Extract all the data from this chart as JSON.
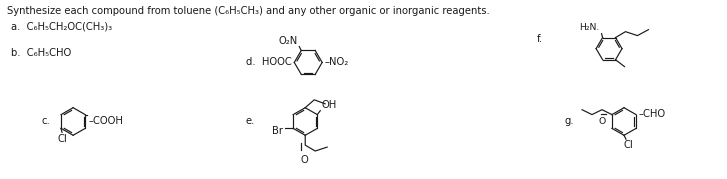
{
  "title": "Synthesize each compound from toluene (C₆H₅CH₃) and any other organic or inorganic reagents.",
  "bg_color": "#ffffff",
  "text_color": "#1a1a1a",
  "label_a": "a.  C₆H₅CH₂OC(CH₃)₃",
  "label_b": "b.  C₆H₅CHO",
  "label_c": "c.",
  "label_d": "d.",
  "label_e": "e.",
  "label_f": "f.",
  "label_g": "g.",
  "fs": 7.2,
  "fs_small": 6.5
}
